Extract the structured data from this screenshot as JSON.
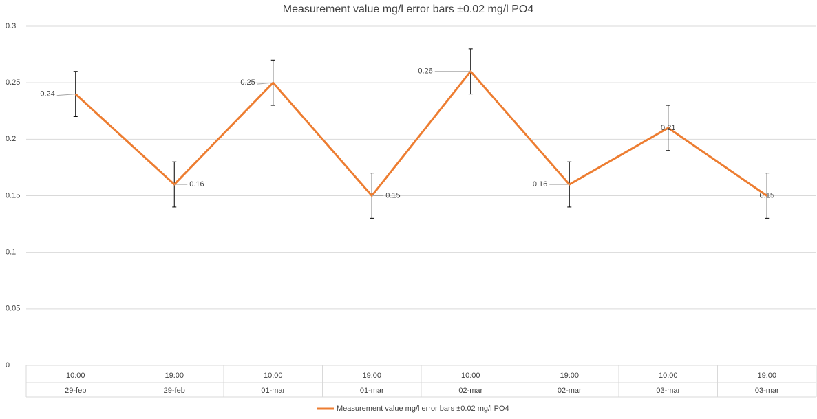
{
  "chart_data": {
    "type": "line",
    "title": "Measurement value mg/l error bars ±0.02 mg/l PO4",
    "categories": [
      [
        "10:00",
        "29-feb"
      ],
      [
        "19:00",
        "29-feb"
      ],
      [
        "10:00",
        "01-mar"
      ],
      [
        "19:00",
        "01-mar"
      ],
      [
        "10:00",
        "02-mar"
      ],
      [
        "19:00",
        "02-mar"
      ],
      [
        "10:00",
        "03-mar"
      ],
      [
        "19:00",
        "03-mar"
      ]
    ],
    "series": [
      {
        "name": "Measurement value mg/l error bars ±0.02 mg/l PO4",
        "color": "#ed7d31",
        "values": [
          0.24,
          0.16,
          0.25,
          0.15,
          0.26,
          0.16,
          0.21,
          0.15
        ],
        "errors": [
          0.02,
          0.02,
          0.02,
          0.02,
          0.02,
          0.02,
          0.02,
          0.02
        ]
      }
    ],
    "ylim": [
      0,
      0.3
    ],
    "yticks": [
      0,
      0.05,
      0.1,
      0.15,
      0.2,
      0.25,
      0.3
    ],
    "grid": true,
    "legend": "bottom"
  }
}
